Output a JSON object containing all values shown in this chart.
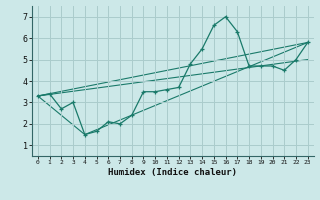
{
  "background_color": "#cce8e8",
  "grid_color": "#aacccc",
  "line_color": "#1a7a6a",
  "xlabel": "Humidex (Indice chaleur)",
  "xlim": [
    -0.5,
    23.5
  ],
  "ylim": [
    0.5,
    7.5
  ],
  "xticks": [
    0,
    1,
    2,
    3,
    4,
    5,
    6,
    7,
    8,
    9,
    10,
    11,
    12,
    13,
    14,
    15,
    16,
    17,
    18,
    19,
    20,
    21,
    22,
    23
  ],
  "yticks": [
    1,
    2,
    3,
    4,
    5,
    6,
    7
  ],
  "main_x": [
    0,
    1,
    2,
    3,
    4,
    5,
    6,
    7,
    8,
    9,
    10,
    11,
    12,
    13,
    14,
    15,
    16,
    17,
    18,
    19,
    20,
    21,
    22,
    23
  ],
  "main_y": [
    3.3,
    3.4,
    2.7,
    3.0,
    1.5,
    1.65,
    2.1,
    2.0,
    2.4,
    3.5,
    3.5,
    3.6,
    3.7,
    4.8,
    5.5,
    6.6,
    7.0,
    6.3,
    4.7,
    4.7,
    4.7,
    4.5,
    5.0,
    5.8
  ],
  "line1_x": [
    0,
    23
  ],
  "line1_y": [
    3.3,
    5.8
  ],
  "line2_x": [
    0,
    23
  ],
  "line2_y": [
    3.3,
    5.0
  ],
  "line3_x": [
    0,
    4,
    23
  ],
  "line3_y": [
    3.3,
    1.5,
    5.8
  ]
}
